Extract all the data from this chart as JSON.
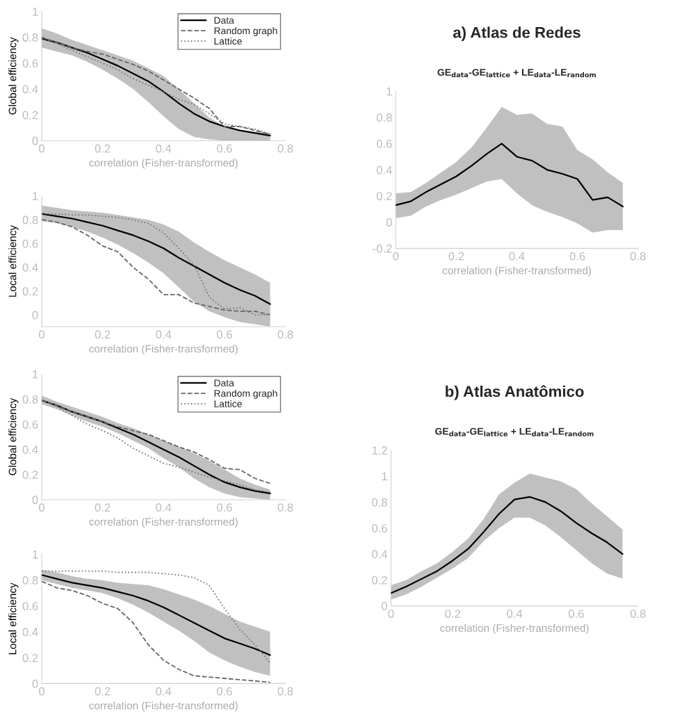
{
  "chart_data": [
    {
      "type": "line",
      "xlabel": "correlation (Fisher-transformed)",
      "ylabel": "Global efficiency",
      "x": [
        0,
        0.05,
        0.1,
        0.15,
        0.2,
        0.25,
        0.3,
        0.35,
        0.4,
        0.45,
        0.5,
        0.55,
        0.6,
        0.65,
        0.7,
        0.75
      ],
      "xlim": [
        0,
        0.8
      ],
      "xticks": [
        0,
        0.2,
        0.4,
        0.6,
        0.8
      ],
      "ylim": [
        0,
        1
      ],
      "yticks": [
        0,
        0.2,
        0.4,
        0.6,
        0.8,
        1
      ],
      "legend": "top right",
      "series": [
        {
          "name": "Data",
          "color": "#000000",
          "line_style": "solid",
          "values": [
            0.79,
            0.76,
            0.72,
            0.68,
            0.63,
            0.58,
            0.52,
            0.46,
            0.38,
            0.29,
            0.21,
            0.15,
            0.11,
            0.08,
            0.06,
            0.04
          ],
          "lower": [
            0.72,
            0.69,
            0.66,
            0.61,
            0.55,
            0.48,
            0.4,
            0.3,
            0.19,
            0.09,
            0.03,
            0.01,
            0,
            0,
            0,
            0
          ],
          "upper": [
            0.87,
            0.83,
            0.78,
            0.74,
            0.7,
            0.66,
            0.62,
            0.56,
            0.5,
            0.4,
            0.29,
            0.18,
            0.11,
            0.08,
            0.07,
            0.06
          ]
        },
        {
          "name": "Random graph",
          "color": "#666666",
          "line_style": "dashed",
          "values": [
            0.8,
            0.76,
            0.72,
            0.69,
            0.67,
            0.63,
            0.59,
            0.54,
            0.47,
            0.4,
            0.33,
            0.25,
            0.11,
            0.11,
            0.08,
            0.05
          ]
        },
        {
          "name": "Lattice",
          "color": "#777777",
          "line_style": "dotted",
          "values": [
            0.79,
            0.75,
            0.7,
            0.65,
            0.6,
            0.55,
            0.48,
            0.43,
            0.38,
            0.32,
            0.28,
            0.21,
            0.13,
            0.11,
            0.09,
            0.05
          ]
        }
      ]
    },
    {
      "type": "line",
      "xlabel": "correlation (Fisher-transformed)",
      "ylabel": "Local efficiency",
      "x": [
        0,
        0.05,
        0.1,
        0.15,
        0.2,
        0.25,
        0.3,
        0.35,
        0.4,
        0.45,
        0.5,
        0.55,
        0.6,
        0.65,
        0.7,
        0.75
      ],
      "xlim": [
        0,
        0.8
      ],
      "xticks": [
        0,
        0.2,
        0.4,
        0.6,
        0.8
      ],
      "ylim": [
        -0.1,
        1
      ],
      "yticks": [
        0,
        0.2,
        0.4,
        0.6,
        0.8,
        1
      ],
      "series": [
        {
          "color": "#000000",
          "line_style": "solid",
          "values": [
            0.85,
            0.83,
            0.81,
            0.78,
            0.75,
            0.71,
            0.67,
            0.62,
            0.56,
            0.48,
            0.41,
            0.34,
            0.27,
            0.21,
            0.16,
            0.09
          ],
          "lower": [
            0.79,
            0.77,
            0.74,
            0.7,
            0.65,
            0.59,
            0.52,
            0.44,
            0.35,
            0.23,
            0.11,
            0.03,
            -0.02,
            -0.06,
            -0.08,
            -0.1
          ],
          "upper": [
            0.92,
            0.9,
            0.88,
            0.87,
            0.86,
            0.84,
            0.82,
            0.8,
            0.76,
            0.7,
            0.61,
            0.53,
            0.46,
            0.4,
            0.34,
            0.27
          ]
        },
        {
          "color": "#666666",
          "line_style": "dashed",
          "values": [
            0.8,
            0.78,
            0.74,
            0.67,
            0.58,
            0.53,
            0.4,
            0.3,
            0.17,
            0.17,
            0.1,
            0.07,
            0.04,
            0.03,
            0.03,
            0
          ]
        },
        {
          "color": "#777777",
          "line_style": "dotted",
          "values": [
            0.85,
            0.85,
            0.84,
            0.84,
            0.83,
            0.82,
            0.8,
            0.77,
            0.69,
            0.56,
            0.42,
            0.15,
            0.05,
            0.06,
            0,
            0
          ]
        }
      ]
    },
    {
      "type": "line",
      "xlabel": "correlation (Fisher-transformed)",
      "ylabel": "Global efficiency",
      "x": [
        0,
        0.05,
        0.1,
        0.15,
        0.2,
        0.25,
        0.3,
        0.35,
        0.4,
        0.45,
        0.5,
        0.55,
        0.6,
        0.65,
        0.7,
        0.75
      ],
      "xlim": [
        0,
        0.8
      ],
      "xticks": [
        0,
        0.2,
        0.4,
        0.6,
        0.8
      ],
      "ylim": [
        0,
        1
      ],
      "yticks": [
        0,
        0.2,
        0.4,
        0.6,
        0.8,
        1
      ],
      "legend": "top right",
      "series": [
        {
          "name": "Data",
          "color": "#000000",
          "line_style": "solid",
          "values": [
            0.79,
            0.75,
            0.7,
            0.66,
            0.62,
            0.57,
            0.52,
            0.46,
            0.4,
            0.34,
            0.27,
            0.2,
            0.14,
            0.1,
            0.07,
            0.05
          ],
          "lower": [
            0.76,
            0.72,
            0.67,
            0.62,
            0.58,
            0.53,
            0.47,
            0.41,
            0.33,
            0.26,
            0.17,
            0.1,
            0.05,
            0.02,
            0.01,
            0
          ],
          "upper": [
            0.83,
            0.78,
            0.74,
            0.7,
            0.66,
            0.61,
            0.57,
            0.52,
            0.47,
            0.42,
            0.37,
            0.31,
            0.24,
            0.17,
            0.12,
            0.08
          ]
        },
        {
          "name": "Random graph",
          "color": "#666666",
          "line_style": "dashed",
          "values": [
            0.79,
            0.75,
            0.7,
            0.66,
            0.62,
            0.58,
            0.55,
            0.52,
            0.47,
            0.42,
            0.38,
            0.32,
            0.25,
            0.24,
            0.17,
            0.13
          ]
        },
        {
          "name": "Lattice",
          "color": "#777777",
          "line_style": "dotted",
          "values": [
            0.79,
            0.74,
            0.67,
            0.6,
            0.55,
            0.49,
            0.41,
            0.35,
            0.29,
            0.26,
            0.22,
            0.18,
            0.15,
            0.12,
            0.08,
            0.06
          ]
        }
      ]
    },
    {
      "type": "line",
      "xlabel": "correlation (Fisher-transformed)",
      "ylabel": "Local efficiency",
      "x": [
        0,
        0.05,
        0.1,
        0.15,
        0.2,
        0.25,
        0.3,
        0.35,
        0.4,
        0.45,
        0.5,
        0.55,
        0.6,
        0.65,
        0.7,
        0.75
      ],
      "xlim": [
        0,
        0.8
      ],
      "xticks": [
        0,
        0.2,
        0.4,
        0.6,
        0.8
      ],
      "ylim": [
        0,
        1
      ],
      "yticks": [
        0,
        0.2,
        0.4,
        0.6,
        0.8,
        1
      ],
      "series": [
        {
          "color": "#000000",
          "line_style": "solid",
          "values": [
            0.84,
            0.81,
            0.78,
            0.76,
            0.74,
            0.71,
            0.68,
            0.64,
            0.59,
            0.53,
            0.47,
            0.41,
            0.35,
            0.31,
            0.27,
            0.22
          ],
          "lower": [
            0.8,
            0.77,
            0.74,
            0.72,
            0.7,
            0.66,
            0.61,
            0.55,
            0.48,
            0.41,
            0.33,
            0.24,
            0.18,
            0.13,
            0.09,
            0.06
          ],
          "upper": [
            0.88,
            0.86,
            0.83,
            0.81,
            0.8,
            0.78,
            0.77,
            0.76,
            0.73,
            0.69,
            0.65,
            0.6,
            0.54,
            0.48,
            0.44,
            0.4
          ]
        },
        {
          "color": "#666666",
          "line_style": "dashed",
          "values": [
            0.79,
            0.74,
            0.72,
            0.68,
            0.62,
            0.58,
            0.47,
            0.3,
            0.18,
            0.11,
            0.06,
            0.05,
            0.04,
            0.03,
            0.02,
            0.01
          ]
        },
        {
          "color": "#777777",
          "line_style": "dotted",
          "values": [
            0.87,
            0.87,
            0.87,
            0.87,
            0.87,
            0.86,
            0.86,
            0.86,
            0.85,
            0.84,
            0.82,
            0.76,
            0.58,
            0.42,
            0.3,
            0.16
          ]
        }
      ]
    },
    {
      "type": "line",
      "title": "a) Atlas de Redes",
      "subtitle": "GE$_{data}$-GE$_{lattice}$ + LE$_{data}$-LE$_{random}$",
      "xlabel": "correlation (Fisher-transformed)",
      "x": [
        0,
        0.05,
        0.1,
        0.15,
        0.2,
        0.25,
        0.3,
        0.35,
        0.4,
        0.45,
        0.5,
        0.55,
        0.6,
        0.65,
        0.7,
        0.75
      ],
      "xlim": [
        0,
        0.8
      ],
      "xticks": [
        0,
        0.2,
        0.4,
        0.6,
        0.8
      ],
      "ylim": [
        -0.2,
        1
      ],
      "yticks": [
        -0.2,
        0,
        0.2,
        0.4,
        0.6,
        0.8,
        1
      ],
      "series": [
        {
          "color": "#000000",
          "line_style": "solid",
          "values": [
            0.13,
            0.16,
            0.23,
            0.29,
            0.35,
            0.43,
            0.52,
            0.6,
            0.5,
            0.47,
            0.4,
            0.37,
            0.33,
            0.17,
            0.19,
            0.12
          ],
          "lower": [
            0.03,
            0.05,
            0.12,
            0.17,
            0.21,
            0.26,
            0.31,
            0.33,
            0.22,
            0.13,
            0.08,
            0.04,
            -0.01,
            -0.08,
            -0.06,
            -0.06
          ],
          "upper": [
            0.22,
            0.23,
            0.3,
            0.38,
            0.46,
            0.57,
            0.72,
            0.88,
            0.82,
            0.83,
            0.75,
            0.73,
            0.55,
            0.48,
            0.38,
            0.3
          ]
        }
      ]
    },
    {
      "type": "line",
      "title": "b) Atlas Anatômico",
      "subtitle": "GE$_{data}$-GE$_{lattice}$ + LE$_{data}$-LE$_{random}$",
      "xlabel": "correlation (Fisher-transformed)",
      "x": [
        0,
        0.05,
        0.1,
        0.15,
        0.2,
        0.25,
        0.3,
        0.35,
        0.4,
        0.45,
        0.5,
        0.55,
        0.6,
        0.65,
        0.7,
        0.75
      ],
      "xlim": [
        0,
        0.8
      ],
      "xticks": [
        0,
        0.2,
        0.4,
        0.6,
        0.8
      ],
      "ylim": [
        0,
        1.2
      ],
      "yticks": [
        0,
        0.2,
        0.4,
        0.6,
        0.8,
        1,
        1.2
      ],
      "series": [
        {
          "color": "#000000",
          "line_style": "solid",
          "values": [
            0.1,
            0.15,
            0.21,
            0.27,
            0.35,
            0.44,
            0.57,
            0.71,
            0.82,
            0.84,
            0.8,
            0.73,
            0.64,
            0.56,
            0.49,
            0.4
          ],
          "lower": [
            0.05,
            0.09,
            0.15,
            0.22,
            0.29,
            0.37,
            0.5,
            0.6,
            0.68,
            0.68,
            0.62,
            0.53,
            0.43,
            0.33,
            0.25,
            0.21
          ],
          "upper": [
            0.16,
            0.2,
            0.27,
            0.33,
            0.42,
            0.52,
            0.67,
            0.86,
            0.95,
            1.02,
            0.99,
            0.96,
            0.9,
            0.79,
            0.69,
            0.59
          ]
        }
      ]
    }
  ]
}
